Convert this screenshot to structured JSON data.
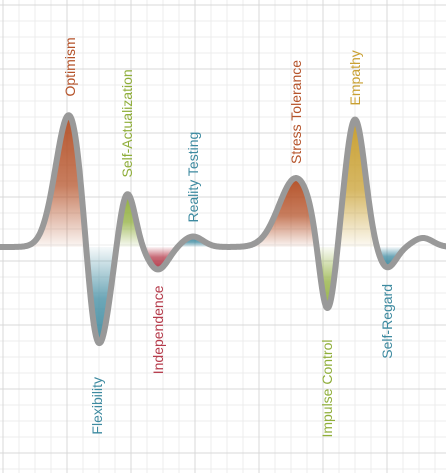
{
  "chart_data": {
    "type": "line",
    "title": "",
    "xlabel": "",
    "ylabel": "",
    "baseline": 0,
    "ylim": [
      -5,
      5
    ],
    "grid": true,
    "curve_color": "#999999",
    "peaks": [
      {
        "label": "Optimism",
        "value": 4.55,
        "color": "#b5532a",
        "direction": "up"
      },
      {
        "label": "Flexibility",
        "value": -3.8,
        "color": "#3d8aa0",
        "direction": "down"
      },
      {
        "label": "Self-Actualization",
        "value": 1.85,
        "color": "#8fae3a",
        "direction": "up"
      },
      {
        "label": "Independence",
        "value": -0.75,
        "color": "#b53a4a",
        "direction": "down"
      },
      {
        "label": "Reality Testing",
        "value": 0.35,
        "color": "#3d8aa0",
        "direction": "up"
      },
      {
        "label": "Stress Tolerance",
        "value": 2.3,
        "color": "#b5532a",
        "direction": "up"
      },
      {
        "label": "Impulse Control",
        "value": -2.55,
        "color": "#8fae3a",
        "direction": "down"
      },
      {
        "label": "Empathy",
        "value": 4.25,
        "color": "#c9a032",
        "direction": "up"
      },
      {
        "label": "Self-Regard",
        "value": -0.7,
        "color": "#3d8aa0",
        "direction": "down"
      }
    ]
  }
}
